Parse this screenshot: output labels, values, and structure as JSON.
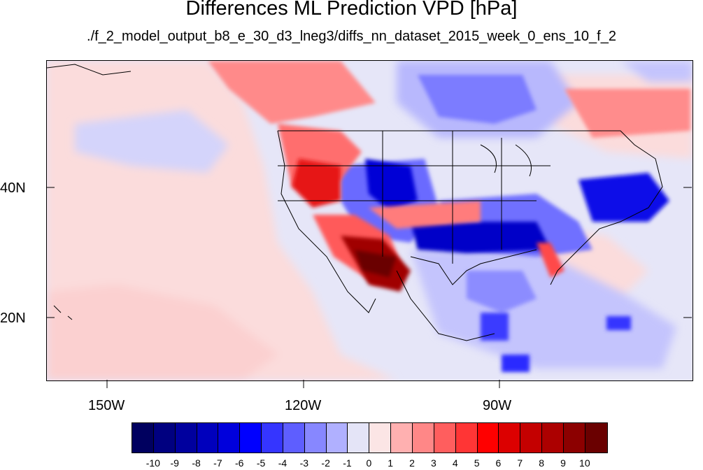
{
  "title": "Differences ML Prediction VPD [hPa]",
  "subtitle": "./f_2_model_output_b8_e_30_d3_lneg3/diffs_nn_dataset_2015_week_0_ens_10_f_2",
  "map": {
    "x_ticks": [
      "150W",
      "120W",
      "90W"
    ],
    "y_ticks": [
      "40N",
      "20N"
    ]
  },
  "colorbar": {
    "colors": [
      "#00005f",
      "#000080",
      "#00009e",
      "#0000bd",
      "#0000dc",
      "#0000ff",
      "#3535ff",
      "#5e5eff",
      "#8787ff",
      "#b0b0ff",
      "#e4e4f7",
      "#fbe5e5",
      "#ffb0b0",
      "#ff8787",
      "#ff5e5e",
      "#ff3535",
      "#ff0000",
      "#dc0000",
      "#c40000",
      "#ac0000",
      "#8c0000",
      "#6a0000"
    ],
    "labels": [
      "-10",
      "-9",
      "-8",
      "-7",
      "-6",
      "-5",
      "-4",
      "-3",
      "-2",
      "-1",
      "0",
      "1",
      "2",
      "3",
      "4",
      "5",
      "6",
      "7",
      "8",
      "9",
      "10"
    ]
  }
}
